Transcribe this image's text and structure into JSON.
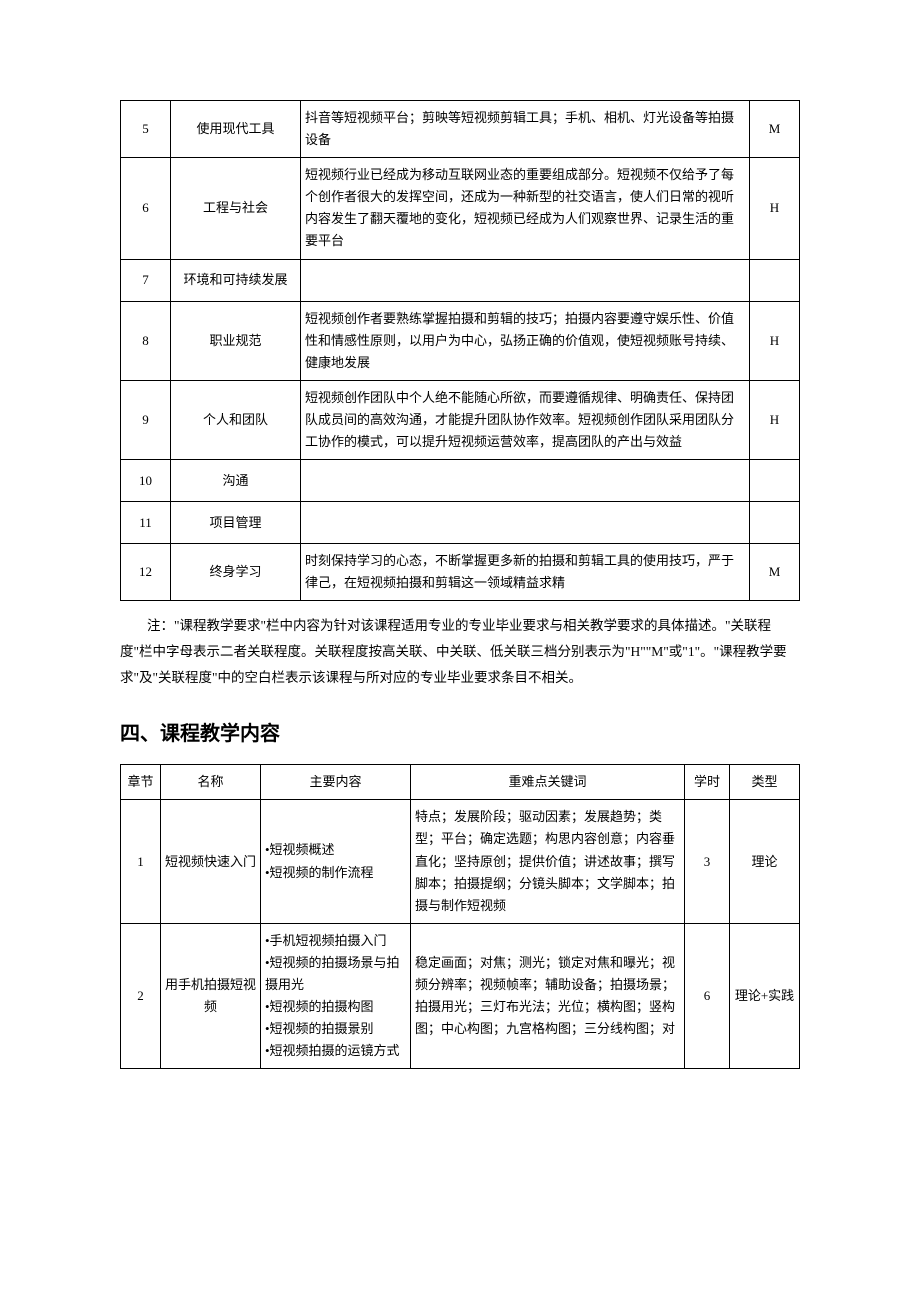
{
  "table1": {
    "rows": [
      {
        "num": "5",
        "name": "使用现代工具",
        "desc": "抖音等短视频平台；剪映等短视频剪辑工具；手机、相机、灯光设备等拍摄设备",
        "level": "M"
      },
      {
        "num": "6",
        "name": "工程与社会",
        "desc": "短视频行业已经成为移动互联网业态的重要组成部分。短视频不仅给予了每个创作者很大的发挥空间，还成为一种新型的社交语言，使人们日常的视听内容发生了翻天覆地的变化，短视频已经成为人们观察世界、记录生活的重要平台",
        "level": "H"
      },
      {
        "num": "7",
        "name": "环境和可持续发展",
        "desc": "",
        "level": ""
      },
      {
        "num": "8",
        "name": "职业规范",
        "desc": "短视频创作者要熟练掌握拍摄和剪辑的技巧；拍摄内容要遵守娱乐性、价值性和情感性原则，以用户为中心，弘扬正确的价值观，使短视频账号持续、健康地发展",
        "level": "H"
      },
      {
        "num": "9",
        "name": "个人和团队",
        "desc": "短视频创作团队中个人绝不能随心所欲，而要遵循规律、明确责任、保持团队成员间的高效沟通，才能提升团队协作效率。短视频创作团队采用团队分工协作的模式，可以提升短视频运营效率，提高团队的产出与效益",
        "level": "H"
      },
      {
        "num": "10",
        "name": "沟通",
        "desc": "",
        "level": ""
      },
      {
        "num": "11",
        "name": "项目管理",
        "desc": "",
        "level": ""
      },
      {
        "num": "12",
        "name": "终身学习",
        "desc": "时刻保持学习的心态，不断掌握更多新的拍摄和剪辑工具的使用技巧，严于律己，在短视频拍摄和剪辑这一领域精益求精",
        "level": "M"
      }
    ]
  },
  "note": "注：\"课程教学要求\"栏中内容为针对该课程适用专业的专业毕业要求与相关教学要求的具体描述。\"关联程度\"栏中字母表示二者关联程度。关联程度按高关联、中关联、低关联三档分别表示为\"H\"\"M\"或\"1\"。\"课程教学要求\"及\"关联程度\"中的空白栏表示该课程与所对应的专业毕业要求条目不相关。",
  "section_title": "四、课程教学内容",
  "table2": {
    "headers": {
      "chapter": "章节",
      "name": "名称",
      "content": "主要内容",
      "keywords": "重难点关键词",
      "hours": "学时",
      "type": "类型"
    },
    "rows": [
      {
        "chapter": "1",
        "name": "短视频快速入门",
        "content": "•短视频概述\n•短视频的制作流程",
        "keywords": "特点；发展阶段；驱动因素；发展趋势；类型；平台；确定选题；构思内容创意；内容垂直化；坚持原创；提供价值；讲述故事；撰写脚本；拍摄提纲；分镜头脚本；文学脚本；拍摄与制作短视频",
        "hours": "3",
        "type": "理论"
      },
      {
        "chapter": "2",
        "name": "用手机拍摄短视频",
        "content": "•手机短视频拍摄入门\n•短视频的拍摄场景与拍摄用光\n•短视频的拍摄构图\n•短视频的拍摄景别\n•短视频拍摄的运镜方式",
        "keywords": "稳定画面；对焦；测光；锁定对焦和曝光；视频分辨率；视频帧率；辅助设备；拍摄场景；拍摄用光；三灯布光法；光位；横构图；竖构图；中心构图；九宫格构图；三分线构图；对",
        "hours": "6",
        "type": "理论+实践"
      }
    ]
  }
}
